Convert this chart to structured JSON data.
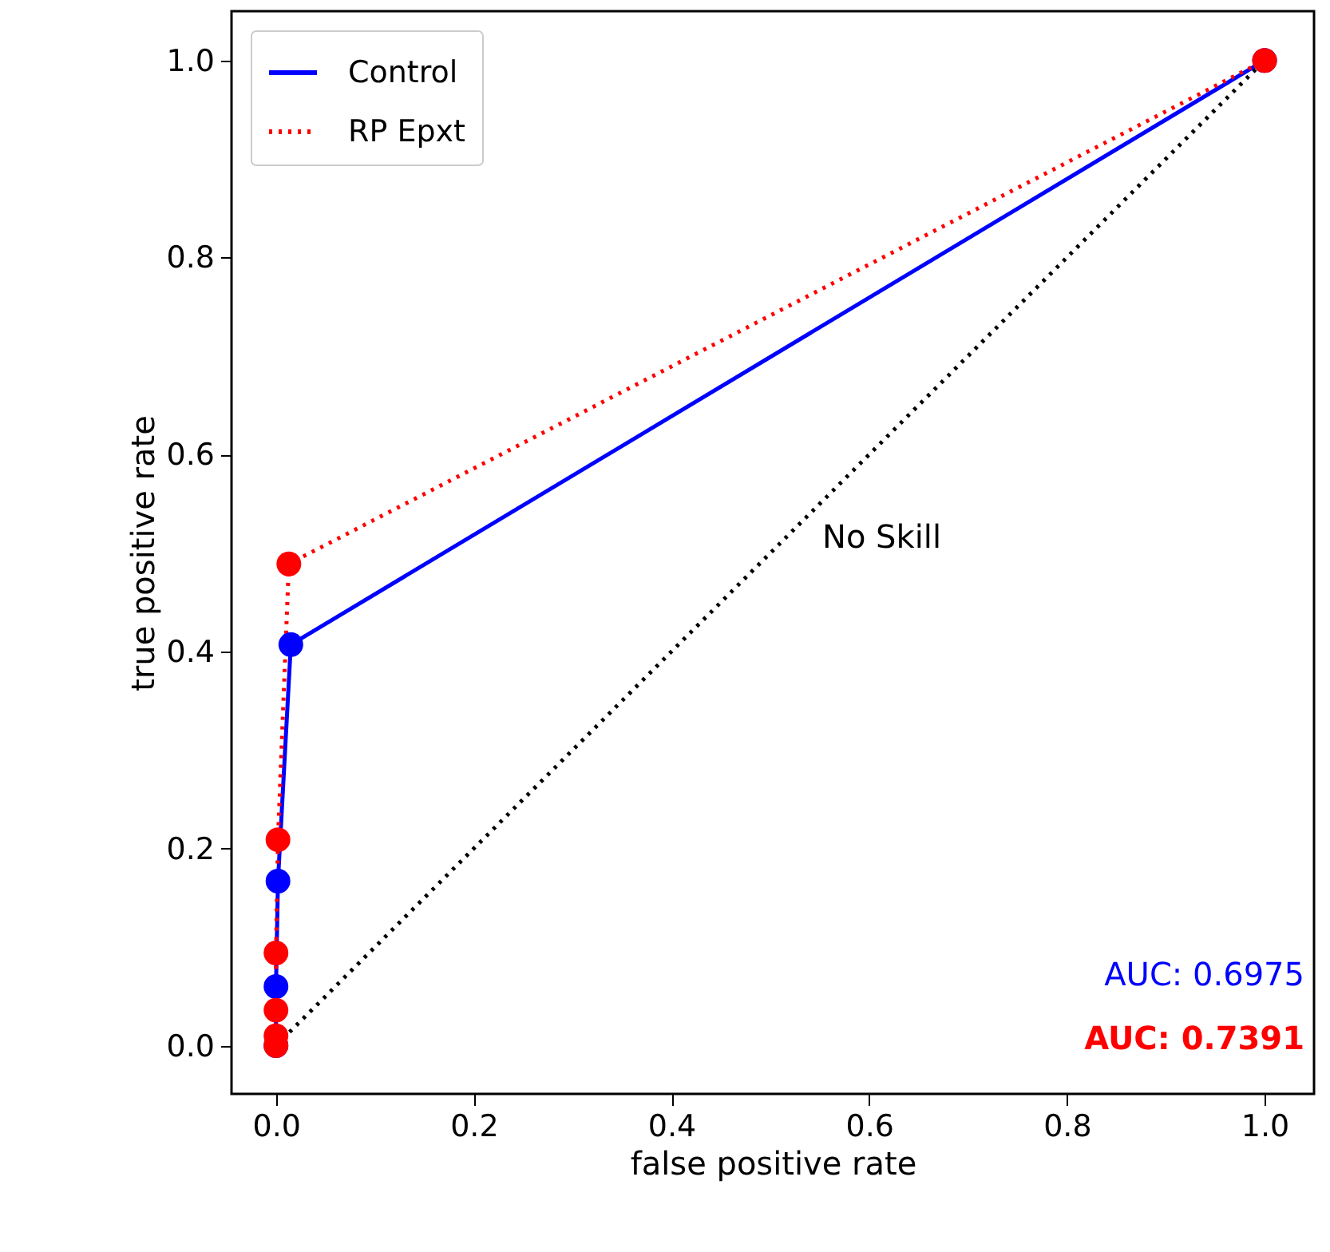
{
  "chart_data": {
    "type": "line",
    "xlabel": "false positive rate",
    "ylabel": "true positive rate",
    "xlim": [
      -0.045,
      1.05
    ],
    "ylim": [
      -0.049,
      1.05
    ],
    "xticks": [
      {
        "value": 0,
        "label": "0.0"
      },
      0.2,
      0.4,
      0.6,
      0.8,
      {
        "value": 1,
        "label": "1.0"
      }
    ],
    "yticks": [
      {
        "value": 0,
        "label": "0.0"
      },
      0.2,
      0.4,
      0.6,
      0.8,
      {
        "value": 1,
        "label": "1.0"
      }
    ],
    "legend": "top left",
    "marker": "circle",
    "grid": false,
    "series": [
      {
        "name": "Control",
        "color": "#0000ff",
        "line_style": "solid",
        "x": [
          0,
          0,
          0.002,
          0.015,
          1
        ],
        "values": [
          0,
          0.06,
          0.167,
          0.407,
          1
        ]
      },
      {
        "name": "RP Epxt",
        "color": "#ff0000",
        "line_style": "dotted",
        "x": [
          0,
          0,
          0,
          0,
          0.002,
          0.013,
          1
        ],
        "values": [
          0,
          0.01,
          0.036,
          0.094,
          0.209,
          0.489,
          1
        ]
      },
      {
        "color": "#000000",
        "line_style": "dotted",
        "marker": "none",
        "x": [
          0,
          1
        ],
        "values": [
          0,
          1
        ]
      }
    ],
    "annotations": [
      "No Skill",
      "AUC: 0.6975",
      "AUC: 0.7391"
    ]
  }
}
